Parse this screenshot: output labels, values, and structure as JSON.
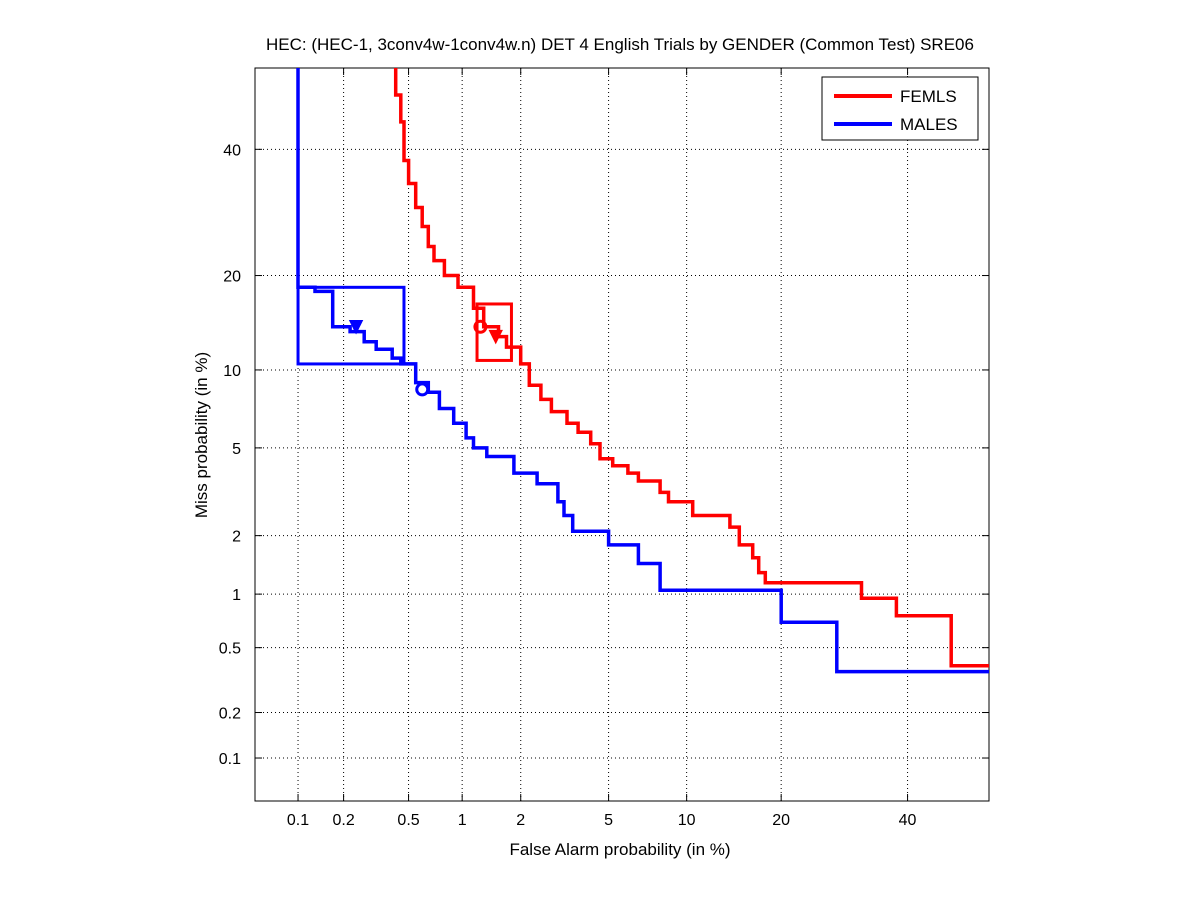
{
  "chart_data": {
    "type": "line",
    "title": "HEC: (HEC-1, 3conv4w-1conv4w.n) DET 4 English Trials by GENDER (Common Test) SRE06",
    "xlabel": "False Alarm probability (in %)",
    "ylabel": "Miss probability (in %)",
    "xscale": "probit",
    "yscale": "probit",
    "xlim": [
      0.05,
      55
    ],
    "ylim": [
      0.05,
      55
    ],
    "x_ticks": [
      0.1,
      0.2,
      0.5,
      1,
      2,
      5,
      10,
      20,
      40
    ],
    "y_ticks": [
      0.1,
      0.2,
      0.5,
      1,
      2,
      5,
      10,
      20,
      40
    ],
    "x_tick_labels": [
      "0.1",
      "0.2",
      "0.5",
      "1",
      "2",
      "5",
      "10",
      "20",
      "40"
    ],
    "y_tick_labels": [
      "0.1",
      "0.2",
      "0.5",
      "1",
      "2",
      "5",
      "10",
      "20",
      "40"
    ],
    "grid": true,
    "legend_position": "top-right",
    "series": [
      {
        "name": "FEMLS",
        "color": "#ff0000",
        "points": [
          [
            0.42,
            55
          ],
          [
            0.42,
            50
          ],
          [
            0.45,
            50
          ],
          [
            0.45,
            45
          ],
          [
            0.47,
            45
          ],
          [
            0.47,
            38
          ],
          [
            0.5,
            38
          ],
          [
            0.5,
            34
          ],
          [
            0.55,
            34
          ],
          [
            0.55,
            30
          ],
          [
            0.6,
            30
          ],
          [
            0.6,
            27
          ],
          [
            0.65,
            27
          ],
          [
            0.65,
            24
          ],
          [
            0.7,
            24
          ],
          [
            0.7,
            22
          ],
          [
            0.8,
            22
          ],
          [
            0.8,
            20
          ],
          [
            0.95,
            20
          ],
          [
            0.95,
            18.5
          ],
          [
            1.15,
            18.5
          ],
          [
            1.15,
            16
          ],
          [
            1.3,
            16
          ],
          [
            1.3,
            14
          ],
          [
            1.55,
            14
          ],
          [
            1.55,
            13
          ],
          [
            1.7,
            13
          ],
          [
            1.7,
            12
          ],
          [
            2.0,
            12
          ],
          [
            2.0,
            10.5
          ],
          [
            2.2,
            10.5
          ],
          [
            2.2,
            8.8
          ],
          [
            2.5,
            8.8
          ],
          [
            2.5,
            7.8
          ],
          [
            2.8,
            7.8
          ],
          [
            2.8,
            7.0
          ],
          [
            3.3,
            7.0
          ],
          [
            3.3,
            6.3
          ],
          [
            3.7,
            6.3
          ],
          [
            3.7,
            5.8
          ],
          [
            4.2,
            5.8
          ],
          [
            4.2,
            5.2
          ],
          [
            4.6,
            5.2
          ],
          [
            4.6,
            4.5
          ],
          [
            5.2,
            4.5
          ],
          [
            5.2,
            4.2
          ],
          [
            6.0,
            4.2
          ],
          [
            6.0,
            3.9
          ],
          [
            6.6,
            3.9
          ],
          [
            6.6,
            3.6
          ],
          [
            8.0,
            3.6
          ],
          [
            8.0,
            3.2
          ],
          [
            8.6,
            3.2
          ],
          [
            8.6,
            2.9
          ],
          [
            10.5,
            2.9
          ],
          [
            10.5,
            2.5
          ],
          [
            14.0,
            2.5
          ],
          [
            14.0,
            2.2
          ],
          [
            15.0,
            2.2
          ],
          [
            15.0,
            1.8
          ],
          [
            16.5,
            1.8
          ],
          [
            16.5,
            1.55
          ],
          [
            17.2,
            1.55
          ],
          [
            17.2,
            1.3
          ],
          [
            18.0,
            1.3
          ],
          [
            18.0,
            1.15
          ],
          [
            32.0,
            1.15
          ],
          [
            32.0,
            0.95
          ],
          [
            38.0,
            0.95
          ],
          [
            38.0,
            0.76
          ],
          [
            48.0,
            0.76
          ],
          [
            48.0,
            0.39
          ],
          [
            55,
            0.39
          ]
        ],
        "operating_points": {
          "actual_dcf": [
            1.5,
            13.0
          ],
          "min_dcf": [
            1.25,
            14.0
          ]
        },
        "confidence_box": {
          "x": [
            1.2,
            1.8
          ],
          "y": [
            10.8,
            16.5
          ]
        }
      },
      {
        "name": "MALES",
        "color": "#0000ff",
        "points": [
          [
            0.1,
            55
          ],
          [
            0.1,
            18.5
          ],
          [
            0.13,
            18.5
          ],
          [
            0.13,
            18.0
          ],
          [
            0.17,
            18.0
          ],
          [
            0.17,
            14.0
          ],
          [
            0.22,
            14.0
          ],
          [
            0.22,
            13.5
          ],
          [
            0.27,
            13.5
          ],
          [
            0.27,
            12.5
          ],
          [
            0.32,
            12.5
          ],
          [
            0.32,
            11.8
          ],
          [
            0.4,
            11.8
          ],
          [
            0.4,
            11.0
          ],
          [
            0.45,
            11.0
          ],
          [
            0.45,
            10.5
          ],
          [
            0.55,
            10.5
          ],
          [
            0.55,
            9.0
          ],
          [
            0.65,
            9.0
          ],
          [
            0.65,
            8.3
          ],
          [
            0.75,
            8.3
          ],
          [
            0.75,
            7.2
          ],
          [
            0.9,
            7.2
          ],
          [
            0.9,
            6.3
          ],
          [
            1.05,
            6.3
          ],
          [
            1.05,
            5.5
          ],
          [
            1.15,
            5.5
          ],
          [
            1.15,
            5.0
          ],
          [
            1.35,
            5.0
          ],
          [
            1.35,
            4.6
          ],
          [
            1.85,
            4.6
          ],
          [
            1.85,
            3.9
          ],
          [
            2.4,
            3.9
          ],
          [
            2.4,
            3.5
          ],
          [
            3.0,
            3.5
          ],
          [
            3.0,
            2.9
          ],
          [
            3.2,
            2.9
          ],
          [
            3.2,
            2.5
          ],
          [
            3.5,
            2.5
          ],
          [
            3.5,
            2.1
          ],
          [
            5.0,
            2.1
          ],
          [
            5.0,
            1.8
          ],
          [
            6.6,
            1.8
          ],
          [
            6.6,
            1.45
          ],
          [
            8.0,
            1.45
          ],
          [
            8.0,
            1.05
          ],
          [
            20.0,
            1.05
          ],
          [
            20.0,
            0.7
          ],
          [
            28.0,
            0.7
          ],
          [
            28.0,
            0.36
          ],
          [
            55,
            0.36
          ]
        ],
        "operating_points": {
          "actual_dcf": [
            0.24,
            14.0
          ],
          "min_dcf": [
            0.6,
            8.5
          ]
        },
        "confidence_box": {
          "x": [
            0.1,
            0.47
          ],
          "y": [
            10.5,
            18.5
          ]
        }
      }
    ]
  }
}
